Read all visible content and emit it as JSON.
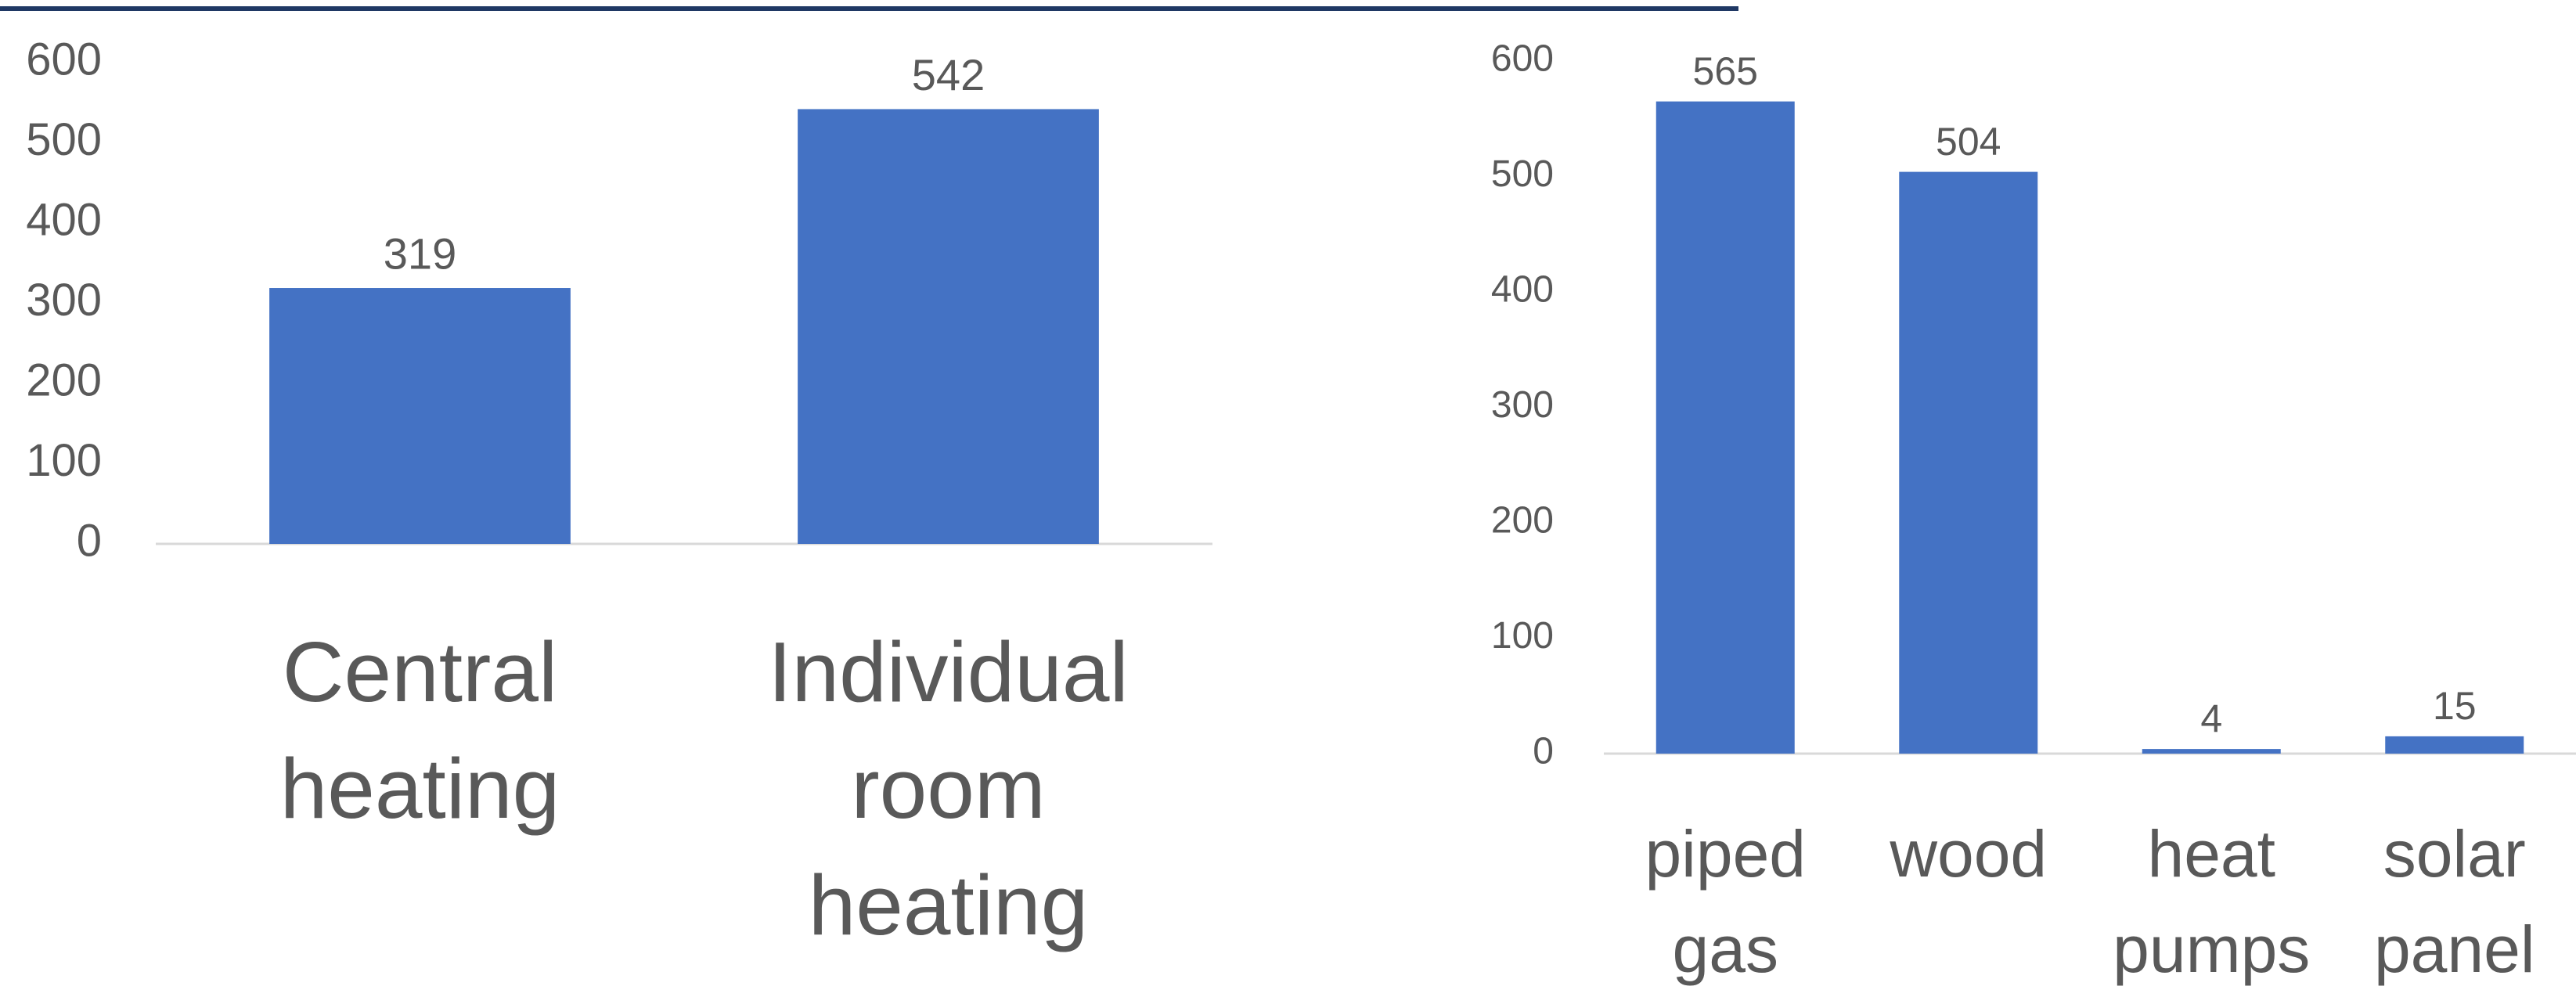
{
  "chart_data": [
    {
      "type": "bar",
      "categories": [
        "Central heating",
        "Individual room heating"
      ],
      "values": [
        319,
        542
      ],
      "color": "#4472c4",
      "ylim": [
        0,
        600
      ],
      "yticks": [
        0,
        100,
        200,
        300,
        400,
        500,
        600
      ],
      "grid": false
    },
    {
      "type": "bar",
      "categories": [
        "piped gas",
        "wood",
        "heat pumps",
        "solar panel"
      ],
      "values": [
        565,
        504,
        4,
        15
      ],
      "color": "#4472c4",
      "ylim": [
        0,
        600
      ],
      "yticks": [
        0,
        100,
        200,
        300,
        400,
        500,
        600
      ],
      "grid": false
    }
  ]
}
